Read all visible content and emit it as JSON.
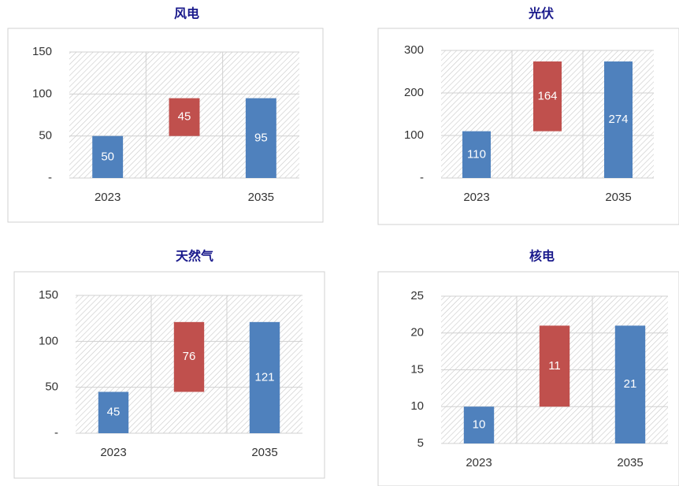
{
  "chart_data": [
    {
      "type": "waterfall",
      "title": "风电",
      "categories": [
        "2023",
        null,
        "2035"
      ],
      "values": [
        50,
        45,
        95
      ],
      "colors": [
        "#4f81bd",
        "#c0504d",
        "#4f81bd"
      ],
      "ylim": [
        0,
        150
      ],
      "yticks": [
        {
          "value": 0,
          "label": "-"
        },
        50,
        100,
        150
      ],
      "grid": true
    },
    {
      "type": "waterfall",
      "title": "光伏",
      "categories": [
        "2023",
        null,
        "2035"
      ],
      "values": [
        110,
        164,
        274
      ],
      "colors": [
        "#4f81bd",
        "#c0504d",
        "#4f81bd"
      ],
      "ylim": [
        0,
        300
      ],
      "yticks": [
        {
          "value": 0,
          "label": "-"
        },
        100,
        200,
        300
      ],
      "grid": true
    },
    {
      "type": "waterfall",
      "title": "天然气",
      "categories": [
        "2023",
        null,
        "2035"
      ],
      "values": [
        45,
        76,
        121
      ],
      "colors": [
        "#4f81bd",
        "#c0504d",
        "#4f81bd"
      ],
      "ylim": [
        0,
        150
      ],
      "yticks": [
        {
          "value": 0,
          "label": "-"
        },
        50,
        100,
        150
      ],
      "grid": true
    },
    {
      "type": "waterfall",
      "title": "核电",
      "categories": [
        "2023",
        null,
        "2035"
      ],
      "values": [
        10,
        11,
        21
      ],
      "colors": [
        "#4f81bd",
        "#c0504d",
        "#4f81bd"
      ],
      "ylim": [
        5,
        25
      ],
      "yticks": [
        5,
        10,
        15,
        20,
        25
      ],
      "grid": true
    }
  ]
}
